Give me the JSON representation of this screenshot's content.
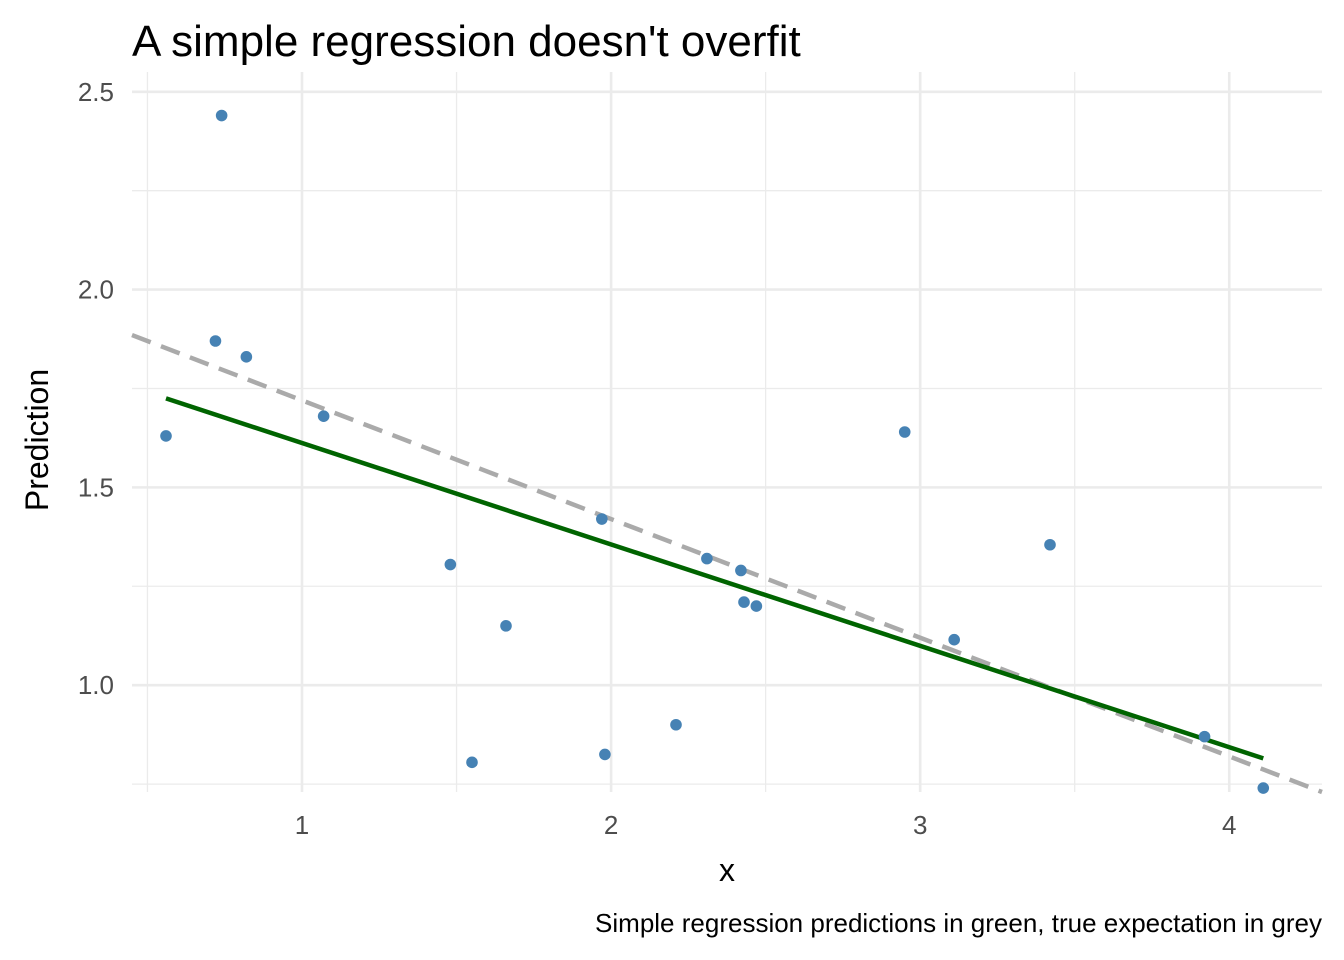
{
  "chart_data": {
    "type": "scatter",
    "title": "A simple regression doesn't overfit",
    "xlabel": "x",
    "ylabel": "Prediction",
    "caption": "Simple regression predictions in green, true expectation in grey",
    "xlim": [
      0.45,
      4.3
    ],
    "ylim": [
      0.73,
      2.55
    ],
    "x_ticks": [
      1,
      2,
      3,
      4
    ],
    "x_tick_labels": [
      "1",
      "2",
      "3",
      "4"
    ],
    "y_ticks": [
      1.0,
      1.5,
      2.0,
      2.5
    ],
    "y_tick_labels": [
      "1.0",
      "1.5",
      "2.0",
      "2.5"
    ],
    "x_minor_ticks": [
      0.5,
      1.5,
      2.5,
      3.5
    ],
    "y_minor_ticks": [
      0.75,
      1.25,
      1.75,
      2.25
    ],
    "grid": true,
    "legend": "none",
    "colors": {
      "points": "#4682b4",
      "regression": "#006400",
      "expectation": "#aaaaaa",
      "grid": "#ebebeb"
    },
    "points": [
      {
        "x": 0.56,
        "y": 1.63
      },
      {
        "x": 0.72,
        "y": 1.87
      },
      {
        "x": 0.74,
        "y": 2.44
      },
      {
        "x": 0.82,
        "y": 1.83
      },
      {
        "x": 1.07,
        "y": 1.68
      },
      {
        "x": 1.48,
        "y": 1.305
      },
      {
        "x": 1.55,
        "y": 0.805
      },
      {
        "x": 1.66,
        "y": 1.15
      },
      {
        "x": 1.97,
        "y": 1.42
      },
      {
        "x": 1.98,
        "y": 0.825
      },
      {
        "x": 2.21,
        "y": 0.9
      },
      {
        "x": 2.31,
        "y": 1.32
      },
      {
        "x": 2.42,
        "y": 1.29
      },
      {
        "x": 2.43,
        "y": 1.21
      },
      {
        "x": 2.47,
        "y": 1.2
      },
      {
        "x": 2.95,
        "y": 1.64
      },
      {
        "x": 3.11,
        "y": 1.115
      },
      {
        "x": 3.42,
        "y": 1.355
      },
      {
        "x": 3.92,
        "y": 0.87
      },
      {
        "x": 4.11,
        "y": 0.74
      }
    ],
    "regression_line": {
      "x": [
        0.56,
        4.11
      ],
      "y": [
        1.725,
        0.815
      ]
    },
    "expectation_line": {
      "x": [
        0.45,
        4.3
      ],
      "y": [
        1.885,
        0.73
      ]
    }
  }
}
